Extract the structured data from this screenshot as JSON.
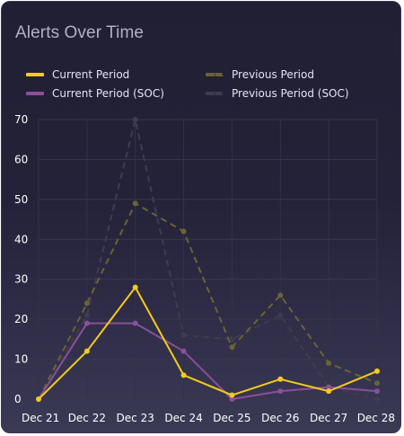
{
  "chart_data": {
    "type": "line",
    "title": "Alerts Over Time",
    "categories": [
      "Dec 21",
      "Dec 22",
      "Dec 23",
      "Dec 24",
      "Dec 25",
      "Dec 26",
      "Dec 27",
      "Dec 28"
    ],
    "y_ticks": [
      "0",
      "10",
      "20",
      "30",
      "40",
      "50",
      "60",
      "70"
    ],
    "ylim": [
      0,
      70
    ],
    "grid": true,
    "legend_position": "top",
    "series": [
      {
        "name": "Current Period",
        "values": [
          0,
          12,
          28,
          6,
          1,
          5,
          2,
          7
        ],
        "color": "#f5ca1c",
        "style": "solid"
      },
      {
        "name": "Previous Period",
        "values": [
          0,
          24,
          49,
          42,
          13,
          26,
          9,
          4
        ],
        "color": "#6b6332",
        "style": "dashed"
      },
      {
        "name": "Current Period (SOC)",
        "values": [
          0,
          19,
          19,
          12,
          0,
          2,
          3,
          2
        ],
        "color": "#8b4f9c",
        "style": "solid"
      },
      {
        "name": "Previous Period (SOC)",
        "values": [
          0,
          21,
          70,
          16,
          15,
          21,
          3,
          0
        ],
        "color": "#3f3b52",
        "style": "dashed"
      }
    ]
  }
}
